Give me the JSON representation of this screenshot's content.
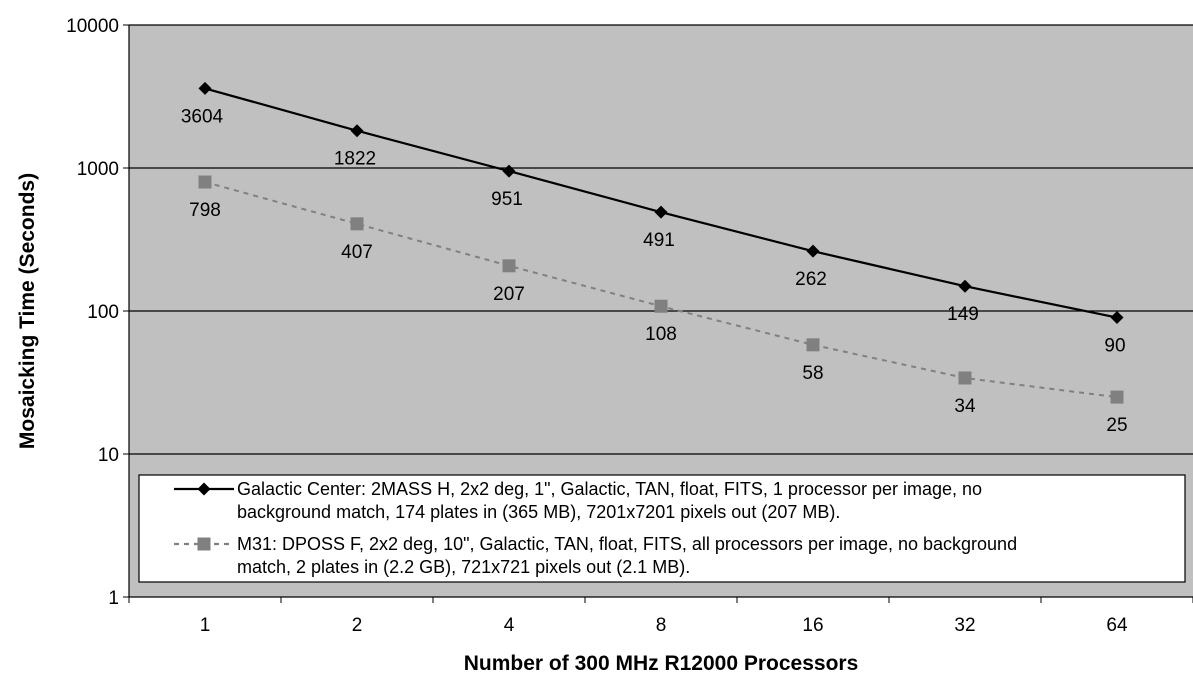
{
  "chart_data": {
    "type": "line",
    "title": "",
    "xlabel": "Number of 300 MHz R12000 Processors",
    "ylabel": "Mosaicking Time (Seconds)",
    "x_scale": "log2",
    "y_scale": "log10",
    "ylim": [
      1,
      10000
    ],
    "categories": [
      "1",
      "2",
      "4",
      "8",
      "16",
      "32",
      "64"
    ],
    "y_ticks": [
      "1",
      "10",
      "100",
      "1000",
      "10000"
    ],
    "grid": true,
    "legend_position": "lower-inside",
    "series": [
      {
        "name": "Galactic Center: 2MASS H, 2x2 deg, 1\", Galactic, TAN, float, FITS, 1 processor per image, no background match, 174 plates in (365 MB), 7201x7201 pixels out (207 MB).",
        "legend_lines": [
          "Galactic Center: 2MASS H, 2x2 deg, 1\", Galactic, TAN, float, FITS, 1 processor per image, no",
          "background match, 174 plates in (365 MB), 7201x7201 pixels out (207 MB)."
        ],
        "values": [
          3604,
          1822,
          951,
          491,
          262,
          149,
          90
        ],
        "labels": [
          "3604",
          "1822",
          "951",
          "491",
          "262",
          "149",
          "90"
        ],
        "color": "#000000",
        "marker": "diamond",
        "line_style": "solid"
      },
      {
        "name": "M31: DPOSS F, 2x2 deg, 10\", Galactic, TAN, float, FITS, all processors per image, no background match, 2 plates in (2.2 GB), 721x721 pixels out (2.1 MB).",
        "legend_lines": [
          "M31: DPOSS F, 2x2 deg, 10\", Galactic, TAN, float, FITS, all processors per image, no background",
          "match, 2 plates in (2.2 GB), 721x721 pixels out (2.1 MB)."
        ],
        "values": [
          798,
          407,
          207,
          108,
          58,
          34,
          25
        ],
        "labels": [
          "798",
          "407",
          "207",
          "108",
          "58",
          "34",
          "25"
        ],
        "color": "#808080",
        "marker": "square",
        "line_style": "dashed"
      }
    ],
    "colors": {
      "plot_background": "#c0c0c0",
      "gridline": "#000000"
    }
  }
}
